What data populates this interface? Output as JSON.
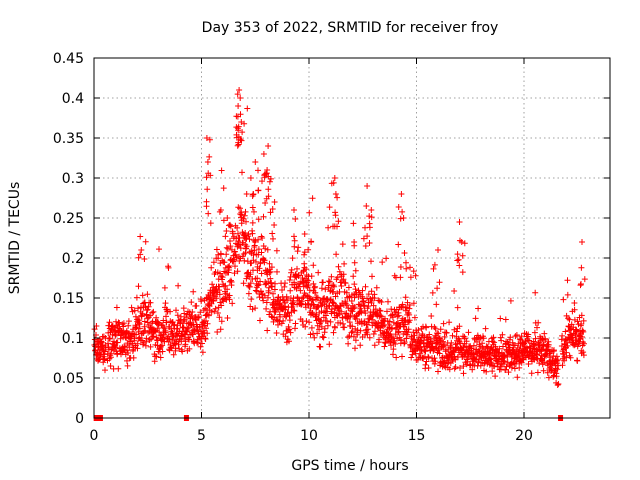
{
  "chart_data": {
    "type": "scatter",
    "title": "Day 353 of 2022, SRMTID for receiver froy",
    "xlabel": "GPS time / hours",
    "ylabel": "SRMTID / TECUs",
    "xlim": [
      0,
      24
    ],
    "ylim": [
      0,
      0.45
    ],
    "x_ticks": [
      "0",
      "5",
      "10",
      "15",
      "20"
    ],
    "y_ticks": [
      "0",
      "0.05",
      "0.1",
      "0.15",
      "0.2",
      "0.25",
      "0.3",
      "0.35",
      "0.4",
      "0.45"
    ],
    "grid": true,
    "marker": "+",
    "color": "#ff0000",
    "zero_points_x": [
      0.1,
      0.15,
      0.2,
      0.25,
      0.3,
      4.3,
      21.7
    ],
    "trend": [
      [
        0.0,
        0.09
      ],
      [
        0.5,
        0.085
      ],
      [
        1.0,
        0.1
      ],
      [
        1.5,
        0.095
      ],
      [
        2.0,
        0.11
      ],
      [
        2.5,
        0.12
      ],
      [
        3.0,
        0.1
      ],
      [
        3.5,
        0.11
      ],
      [
        4.0,
        0.1
      ],
      [
        4.5,
        0.115
      ],
      [
        5.0,
        0.11
      ],
      [
        5.5,
        0.15
      ],
      [
        6.0,
        0.17
      ],
      [
        6.5,
        0.2
      ],
      [
        6.8,
        0.23
      ],
      [
        7.2,
        0.2
      ],
      [
        7.6,
        0.18
      ],
      [
        8.0,
        0.17
      ],
      [
        8.5,
        0.14
      ],
      [
        9.0,
        0.13
      ],
      [
        9.5,
        0.16
      ],
      [
        10.0,
        0.15
      ],
      [
        10.5,
        0.13
      ],
      [
        11.0,
        0.14
      ],
      [
        11.5,
        0.15
      ],
      [
        12.0,
        0.13
      ],
      [
        12.5,
        0.13
      ],
      [
        13.0,
        0.13
      ],
      [
        13.5,
        0.11
      ],
      [
        14.0,
        0.11
      ],
      [
        14.5,
        0.12
      ],
      [
        15.0,
        0.09
      ],
      [
        15.5,
        0.09
      ],
      [
        16.0,
        0.09
      ],
      [
        16.5,
        0.08
      ],
      [
        17.0,
        0.09
      ],
      [
        17.5,
        0.08
      ],
      [
        18.0,
        0.08
      ],
      [
        18.5,
        0.08
      ],
      [
        19.0,
        0.075
      ],
      [
        19.5,
        0.08
      ],
      [
        20.0,
        0.085
      ],
      [
        20.5,
        0.09
      ],
      [
        21.0,
        0.08
      ],
      [
        21.5,
        0.06
      ],
      [
        22.0,
        0.1
      ],
      [
        22.5,
        0.11
      ],
      [
        22.8,
        0.1
      ]
    ],
    "peaks": [
      [
        5.25,
        0.35
      ],
      [
        5.3,
        0.32
      ],
      [
        6.75,
        0.41
      ],
      [
        6.8,
        0.4
      ],
      [
        6.7,
        0.39
      ],
      [
        6.85,
        0.37
      ],
      [
        7.5,
        0.32
      ],
      [
        7.9,
        0.33
      ],
      [
        8.1,
        0.34
      ],
      [
        8.05,
        0.31
      ],
      [
        7.3,
        0.3
      ],
      [
        11.2,
        0.3
      ],
      [
        11.25,
        0.28
      ],
      [
        12.7,
        0.29
      ],
      [
        12.9,
        0.26
      ],
      [
        14.3,
        0.28
      ],
      [
        14.4,
        0.25
      ],
      [
        9.3,
        0.26
      ],
      [
        16.0,
        0.21
      ],
      [
        17.0,
        0.245
      ],
      [
        17.1,
        0.22
      ],
      [
        22.7,
        0.22
      ],
      [
        2.2,
        0.21
      ],
      [
        10.1,
        0.22
      ],
      [
        12.1,
        0.22
      ],
      [
        5.9,
        0.26
      ],
      [
        6.2,
        0.25
      ],
      [
        8.4,
        0.27
      ],
      [
        7.1,
        0.28
      ],
      [
        9.8,
        0.23
      ]
    ]
  }
}
